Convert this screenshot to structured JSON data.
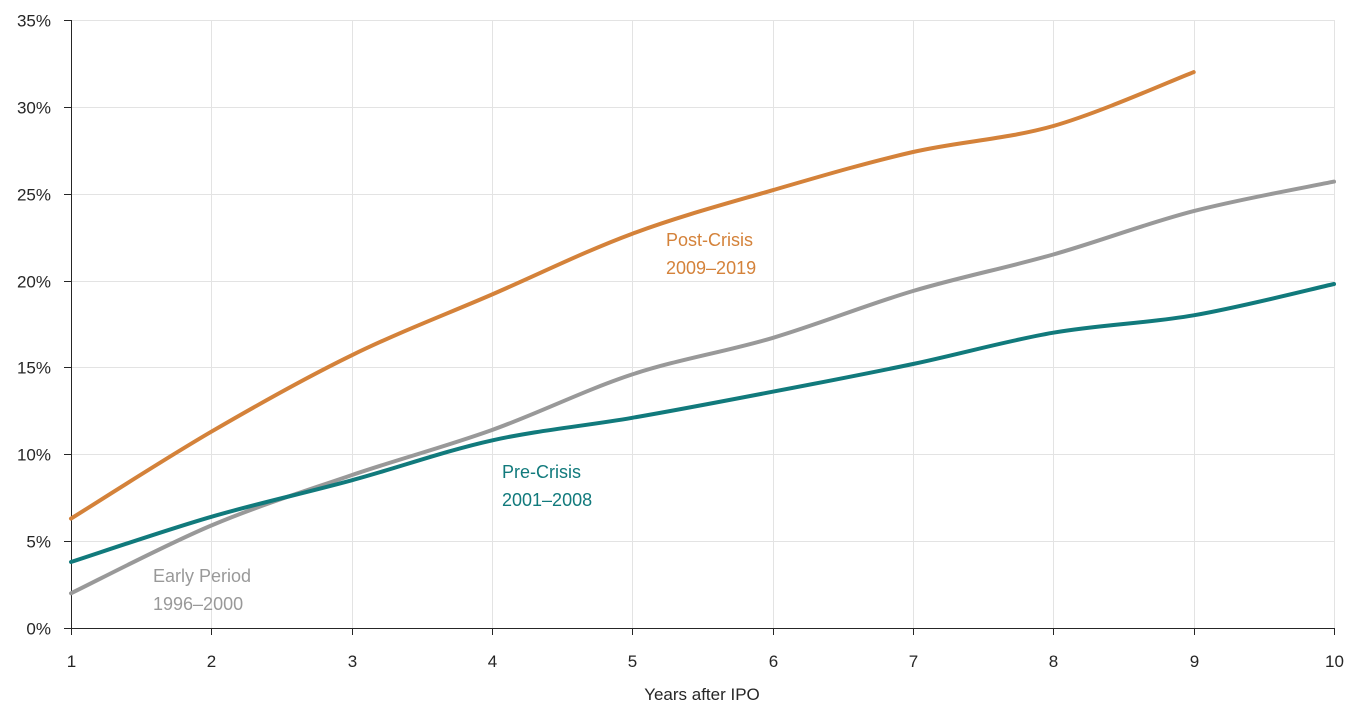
{
  "chart_data": {
    "type": "line",
    "title": "",
    "xlabel": "Years after IPO",
    "ylabel": "",
    "x": [
      1,
      2,
      3,
      4,
      5,
      6,
      7,
      8,
      9,
      10
    ],
    "xlim": [
      1,
      10
    ],
    "ylim": [
      0,
      35
    ],
    "x_ticks": [
      "1",
      "2",
      "3",
      "4",
      "5",
      "6",
      "7",
      "8",
      "9",
      "10"
    ],
    "y_ticks": [
      "0%",
      "5%",
      "10%",
      "15%",
      "20%",
      "25%",
      "30%",
      "35%"
    ],
    "y_tick_values": [
      0,
      5,
      10,
      15,
      20,
      25,
      30,
      35
    ],
    "grid": true,
    "series": [
      {
        "key": "post",
        "color": "#d4823a",
        "x": [
          1,
          2,
          3,
          4,
          5,
          6,
          7,
          8,
          9
        ],
        "values": [
          6.3,
          11.3,
          15.7,
          19.2,
          22.7,
          25.2,
          27.4,
          28.9,
          32.0
        ],
        "label_lines": [
          "Post-Crisis",
          "2009–2019"
        ]
      },
      {
        "key": "early",
        "color": "#999999",
        "x": [
          1,
          2,
          3,
          4,
          5,
          6,
          7,
          8,
          9,
          10
        ],
        "values": [
          2.0,
          5.9,
          8.8,
          11.4,
          14.6,
          16.7,
          19.4,
          21.5,
          24.0,
          25.7
        ],
        "label_lines": [
          "Early Period",
          "1996–2000"
        ]
      },
      {
        "key": "pre",
        "color": "#117a7c",
        "x": [
          1,
          2,
          3,
          4,
          5,
          6,
          7,
          8,
          9,
          10
        ],
        "values": [
          3.8,
          6.4,
          8.5,
          10.8,
          12.1,
          13.6,
          15.2,
          17.0,
          18.0,
          19.8
        ],
        "label_lines": [
          "Pre-Crisis",
          "2001–2008"
        ]
      }
    ]
  }
}
